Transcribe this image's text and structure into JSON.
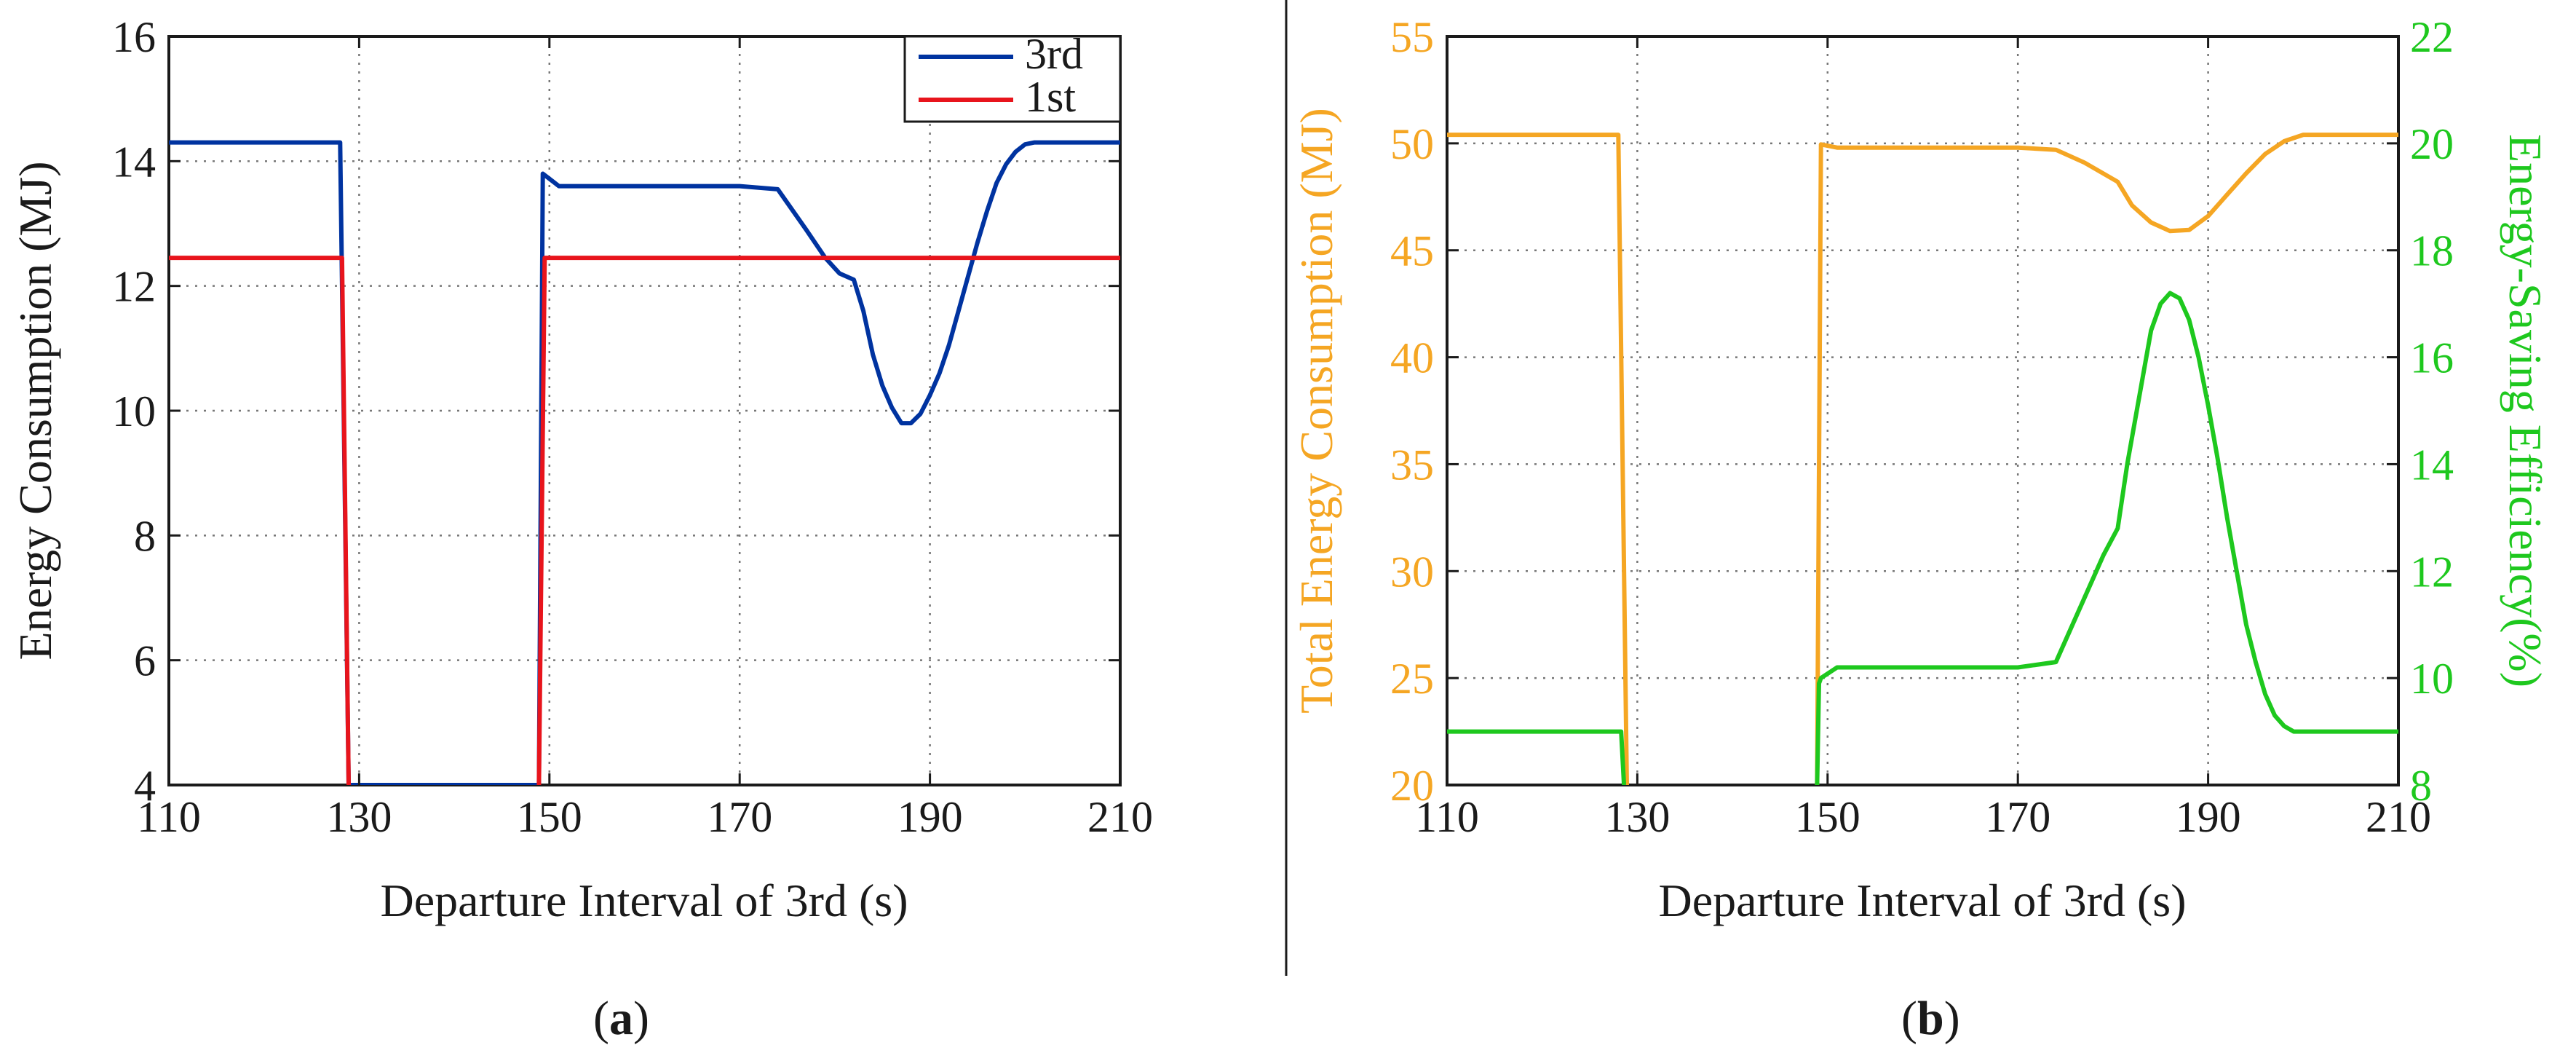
{
  "chart_data": [
    {
      "type": "line",
      "panel_label": "a",
      "xlabel": "Departure Interval of 3rd (s)",
      "ylabel": "Energy Consumption (MJ)",
      "xlim": [
        110,
        210
      ],
      "ylim": [
        4,
        16
      ],
      "xticks": [
        110,
        130,
        150,
        170,
        190,
        210
      ],
      "yticks": [
        4,
        6,
        8,
        10,
        12,
        14,
        16
      ],
      "grid": true,
      "legend_position": "top-right",
      "series": [
        {
          "name": "3rd",
          "color": "#0033a0",
          "x": [
            110,
            128,
            128.9,
            148.9,
            149.3,
            151,
            170,
            174,
            177,
            179,
            180.5,
            182,
            183,
            184,
            185,
            186,
            187,
            188,
            189,
            190,
            191,
            192,
            193,
            194,
            195,
            196,
            197,
            198,
            199,
            200,
            201,
            202,
            210
          ],
          "y": [
            14.3,
            14.3,
            4.0,
            4.0,
            13.8,
            13.6,
            13.6,
            13.55,
            12.9,
            12.45,
            12.2,
            12.1,
            11.6,
            10.9,
            10.4,
            10.05,
            9.8,
            9.8,
            9.95,
            10.25,
            10.6,
            11.05,
            11.6,
            12.15,
            12.7,
            13.2,
            13.65,
            13.95,
            14.15,
            14.27,
            14.3,
            14.3,
            14.3
          ]
        },
        {
          "name": "1st",
          "color": "#e8141c",
          "x": [
            110,
            128.2,
            128.9,
            null,
            148.9,
            149.5,
            210
          ],
          "y": [
            12.45,
            12.45,
            4.0,
            null,
            4.0,
            12.45,
            12.45
          ]
        }
      ]
    },
    {
      "type": "line",
      "panel_label": "b",
      "xlabel": "Departure Interval of 3rd (s)",
      "ylabel": "Total Energy Consumption (MJ)",
      "ylabel_right": "Energy-Saving Efficiency(%)",
      "xlim": [
        110,
        210
      ],
      "ylim": [
        20,
        55
      ],
      "ylim_right": [
        8,
        22
      ],
      "xticks": [
        110,
        130,
        150,
        170,
        190,
        210
      ],
      "yticks": [
        20,
        25,
        30,
        35,
        40,
        45,
        50,
        55
      ],
      "yticks_right": [
        8,
        10,
        12,
        14,
        16,
        18,
        20,
        22
      ],
      "grid": true,
      "series": [
        {
          "name": "Total Energy Consumption",
          "axis": "left",
          "color": "#f5a623",
          "x": [
            110,
            128,
            128.9,
            null,
            148.9,
            149.3,
            151,
            170,
            174,
            177,
            180.5,
            182,
            184,
            186,
            188,
            190,
            192,
            194,
            196,
            198,
            200,
            202,
            210
          ],
          "y": [
            50.4,
            50.4,
            20.0,
            null,
            20.0,
            49.95,
            49.8,
            49.8,
            49.7,
            49.1,
            48.2,
            47.1,
            46.3,
            45.9,
            45.95,
            46.6,
            47.6,
            48.6,
            49.5,
            50.1,
            50.4,
            50.4,
            50.4
          ]
        },
        {
          "name": "Energy-Saving Efficiency",
          "axis": "right",
          "color": "#1ec81e",
          "x": [
            110,
            128.3,
            128.6,
            null,
            148.9,
            149.1,
            149.3,
            151,
            170,
            174,
            177,
            179,
            180.5,
            181.5,
            183,
            184,
            185,
            186,
            187,
            188,
            189,
            190,
            191,
            192,
            193,
            194,
            195,
            196,
            197,
            198,
            199,
            200,
            201,
            210
          ],
          "y": [
            9.0,
            9.0,
            8.0,
            null,
            8.0,
            9.9,
            10.0,
            10.2,
            10.2,
            10.3,
            11.5,
            12.3,
            12.8,
            14.0,
            15.5,
            16.5,
            17.0,
            17.2,
            17.1,
            16.7,
            16.0,
            15.1,
            14.1,
            13.0,
            12.0,
            11.0,
            10.3,
            9.7,
            9.3,
            9.1,
            9.0,
            9.0,
            9.0,
            9.0
          ]
        }
      ]
    }
  ],
  "colors": {
    "axis": "#1a1a1a",
    "grid": "#777777",
    "left_axis_b": "#f5a623",
    "right_axis_b": "#1ec81e"
  }
}
